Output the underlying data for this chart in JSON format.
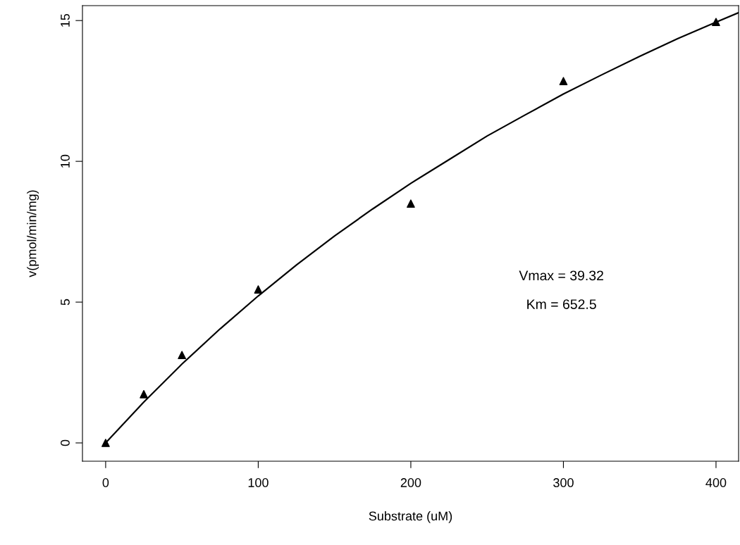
{
  "chart_data": {
    "type": "scatter",
    "xlabel": "Substrate (uM)",
    "ylabel": "v(pmol/min/mg)",
    "xlim": [
      -15.2,
      414.8
    ],
    "ylim": [
      -0.65,
      15.53
    ],
    "xticks": [
      0,
      100,
      200,
      300,
      400
    ],
    "yticks": [
      0,
      5,
      10,
      15
    ],
    "grid": false,
    "legend": false,
    "series": [
      {
        "color": "#000000",
        "marker": "triangle",
        "x": [
          0,
          25,
          50,
          100,
          200,
          300,
          400
        ],
        "values": [
          0,
          1.73,
          3.12,
          5.45,
          8.5,
          12.85,
          14.95
        ]
      },
      {
        "type": "line",
        "color": "#000000",
        "marker": "none",
        "line_style": "solid",
        "x": [
          0,
          25,
          50,
          75,
          100,
          125,
          150,
          175,
          200,
          225,
          250,
          275,
          300,
          325,
          350,
          375,
          400,
          414.8
        ],
        "values": [
          0,
          1.45,
          2.8,
          4.05,
          5.22,
          6.32,
          7.35,
          8.31,
          9.22,
          10.06,
          10.9,
          11.65,
          12.39,
          13.07,
          13.73,
          14.36,
          14.94,
          15.28
        ]
      }
    ],
    "annotations": [
      "Vmax = 39.32",
      "Km = 652.5"
    ]
  }
}
